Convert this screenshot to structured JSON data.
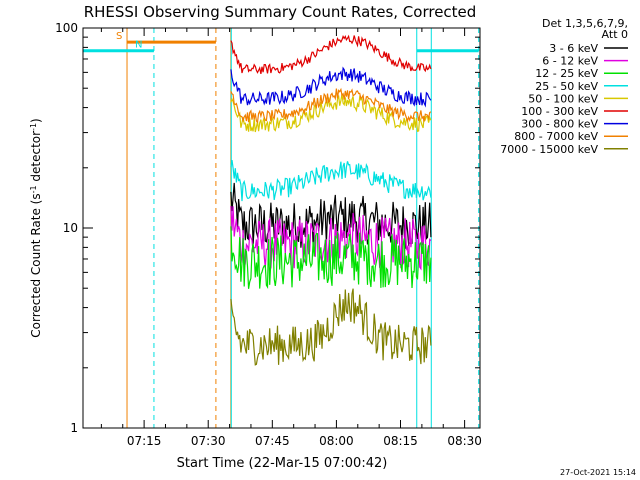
{
  "chart_data": {
    "type": "line",
    "title": "RHESSI Observing Summary Count Rates, Corrected",
    "xlabel": "Start Time (22-Mar-15 07:00:42)",
    "ylabel_parts": [
      "Corrected Count Rate (s",
      "-1",
      " detector",
      "-1",
      ")"
    ],
    "y_scale": "log",
    "ylim": [
      1,
      100
    ],
    "xlim_minutes": [
      0.7,
      53
    ],
    "x_tick_labels": [
      {
        "t": 15,
        "label": "07:15"
      },
      {
        "t": 30,
        "label": "07:30"
      },
      {
        "t": 45,
        "label": "07:45"
      },
      {
        "t": 60,
        "label": "08:00"
      },
      {
        "t": 75,
        "label": "08:15"
      },
      {
        "t": 90,
        "label": "08:30"
      }
    ],
    "y_tick_labels": [
      {
        "v": 1,
        "label": "1"
      },
      {
        "v": 10,
        "label": "10"
      },
      {
        "v": 100,
        "label": "100"
      }
    ],
    "legend_header": [
      "Det 1,3,5,6,7,9,",
      "Att 0"
    ],
    "legend_position": "right",
    "timestamp": "27-Oct-2021 15:14",
    "series": [
      {
        "name": "3 - 6 keV",
        "color": "#000000",
        "start": 35.3,
        "end": 82.1,
        "base": 10.3,
        "peak": 11.2,
        "peak_t": 62,
        "width": 8,
        "noise": 0.12
      },
      {
        "name": "6 - 12 keV",
        "color": "#e000e0",
        "start": 35.3,
        "end": 82.1,
        "base": 8.3,
        "peak": 8.9,
        "peak_t": 62,
        "width": 8,
        "noise": 0.13
      },
      {
        "name": "12 - 25 keV",
        "color": "#00e000",
        "start": 35.3,
        "end": 82.1,
        "base": 6.8,
        "peak": 7.1,
        "peak_t": 62,
        "width": 8,
        "noise": 0.14
      },
      {
        "name": "25 - 50 keV",
        "color": "#00e0e0",
        "start": 35.3,
        "end": 82.1,
        "base": 15.2,
        "peak": 19.5,
        "peak_t": 62,
        "width": 10,
        "noise": 0.05
      },
      {
        "name": "50 - 100 keV",
        "color": "#d8c800",
        "start": 35.3,
        "end": 82.1,
        "base": 33,
        "peak": 43,
        "peak_t": 62,
        "width": 9,
        "noise": 0.04
      },
      {
        "name": "100 - 300 keV",
        "color": "#e00000",
        "start": 35.3,
        "end": 82.1,
        "base": 62,
        "peak": 88,
        "peak_t": 63,
        "width": 9,
        "noise": 0.025
      },
      {
        "name": "300 - 800 keV",
        "color": "#0000e0",
        "start": 35.3,
        "end": 82.1,
        "base": 44,
        "peak": 59,
        "peak_t": 62,
        "width": 9,
        "noise": 0.035
      },
      {
        "name": "800 - 7000 keV",
        "color": "#f08000",
        "start": 35.3,
        "end": 82.1,
        "base": 36,
        "peak": 47,
        "peak_t": 62,
        "width": 9,
        "noise": 0.03
      },
      {
        "name": "7000 - 15000 keV",
        "color": "#808000",
        "start": 35.3,
        "end": 82.1,
        "base": 2.6,
        "peak": 4.2,
        "peak_t": 63,
        "width": 5,
        "noise": 0.1
      }
    ],
    "segments": [
      {
        "label": "S",
        "color": "#f08000",
        "start": 11,
        "end": 31.8,
        "y": 85
      },
      {
        "label": "N",
        "color": "#00e0e0",
        "start": 0.7,
        "end": 17.3,
        "y": 77
      },
      {
        "label": "",
        "color": "#00e0e0",
        "start": 78.8,
        "end": 93.3,
        "y": 77
      }
    ],
    "markers": [
      {
        "t": 11,
        "color": "#f08000",
        "dash": false
      },
      {
        "t": 17.3,
        "color": "#00e0e0",
        "dash": true
      },
      {
        "t": 31.8,
        "color": "#f08000",
        "dash": true
      },
      {
        "t": 35.3,
        "color": "#f08000",
        "dash": false
      },
      {
        "t": 35.4,
        "color": "#00e0e0",
        "dash": false
      },
      {
        "t": 78.8,
        "color": "#00e0e0",
        "dash": false
      },
      {
        "t": 82.2,
        "color": "#00e0e0",
        "dash": false
      },
      {
        "t": 93.3,
        "color": "#00e0e0",
        "dash": true
      }
    ]
  }
}
